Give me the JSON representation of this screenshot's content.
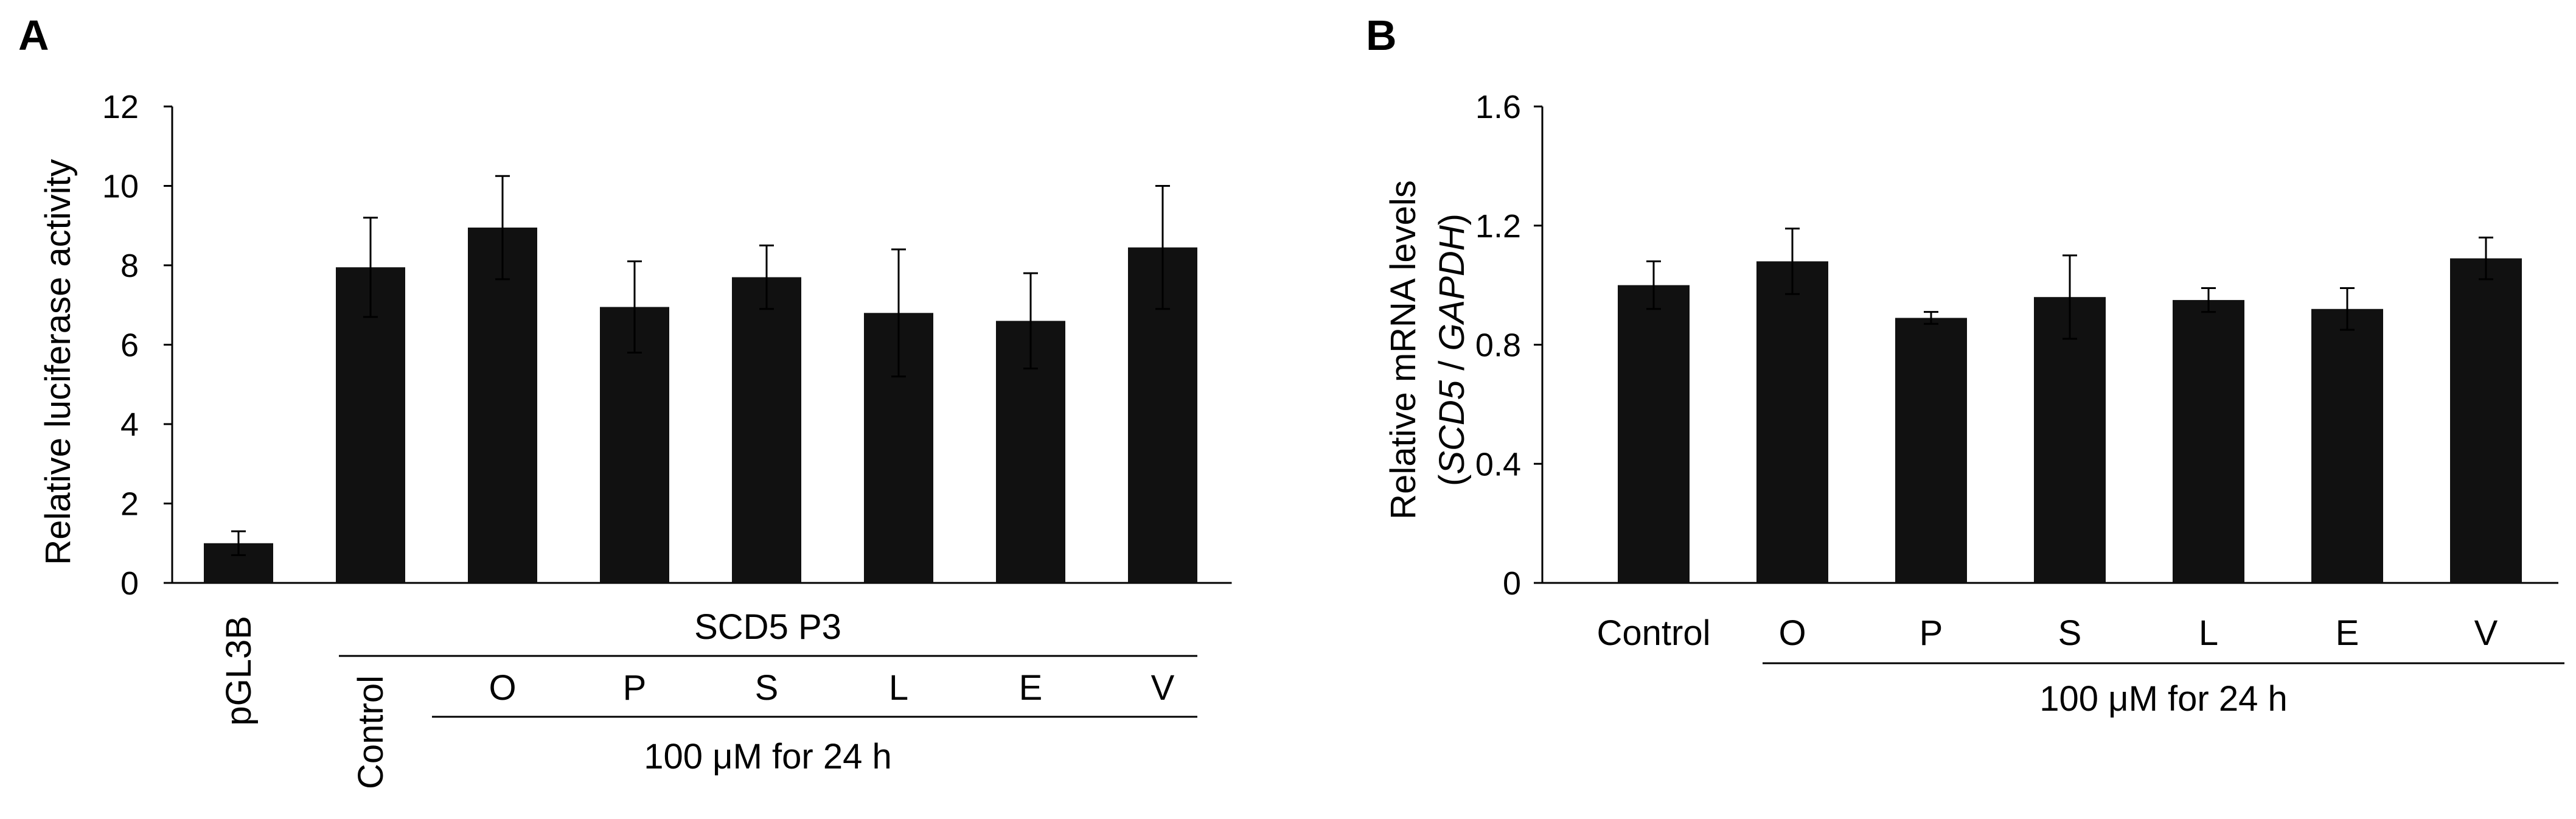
{
  "colors": {
    "bar": "#111111",
    "axis": "#000000",
    "background": "#ffffff"
  },
  "chart_data": [
    {
      "panel": "A",
      "type": "bar",
      "categories": [
        "pGL3B",
        "Control",
        "O",
        "P",
        "S",
        "L",
        "E",
        "V"
      ],
      "values": [
        1.0,
        7.95,
        8.95,
        6.95,
        7.7,
        6.8,
        6.6,
        8.45
      ],
      "errors": [
        0.3,
        1.25,
        1.3,
        1.15,
        0.8,
        1.6,
        1.2,
        1.55
      ],
      "title": "",
      "ylabel": "Relative luciferase activity",
      "ylim": [
        0,
        12
      ],
      "yticks": [
        "0",
        "2",
        "4",
        "6",
        "8",
        "10",
        "12"
      ],
      "group_label": "SCD5 P3",
      "treatment_label": "100 μM for 24 h"
    },
    {
      "panel": "B",
      "type": "bar",
      "categories": [
        "Control",
        "O",
        "P",
        "S",
        "L",
        "E",
        "V"
      ],
      "values": [
        1.0,
        1.08,
        0.89,
        0.96,
        0.95,
        0.92,
        1.09
      ],
      "errors": [
        0.08,
        0.11,
        0.02,
        0.14,
        0.04,
        0.07,
        0.07
      ],
      "title": "",
      "ylabel_line1": "Relative mRNA levels",
      "ylabel_line2_italic_a": "SCD5",
      "ylabel_line2_sep": " / ",
      "ylabel_line2_italic_b": "GAPDH",
      "ylabel_open": "(",
      "ylabel_close": ")",
      "ylim": [
        0,
        1.6
      ],
      "yticks": [
        "0",
        "0.4",
        "0.8",
        "1.2",
        "1.6"
      ],
      "treatment_label": "100 μM for 24 h"
    }
  ]
}
